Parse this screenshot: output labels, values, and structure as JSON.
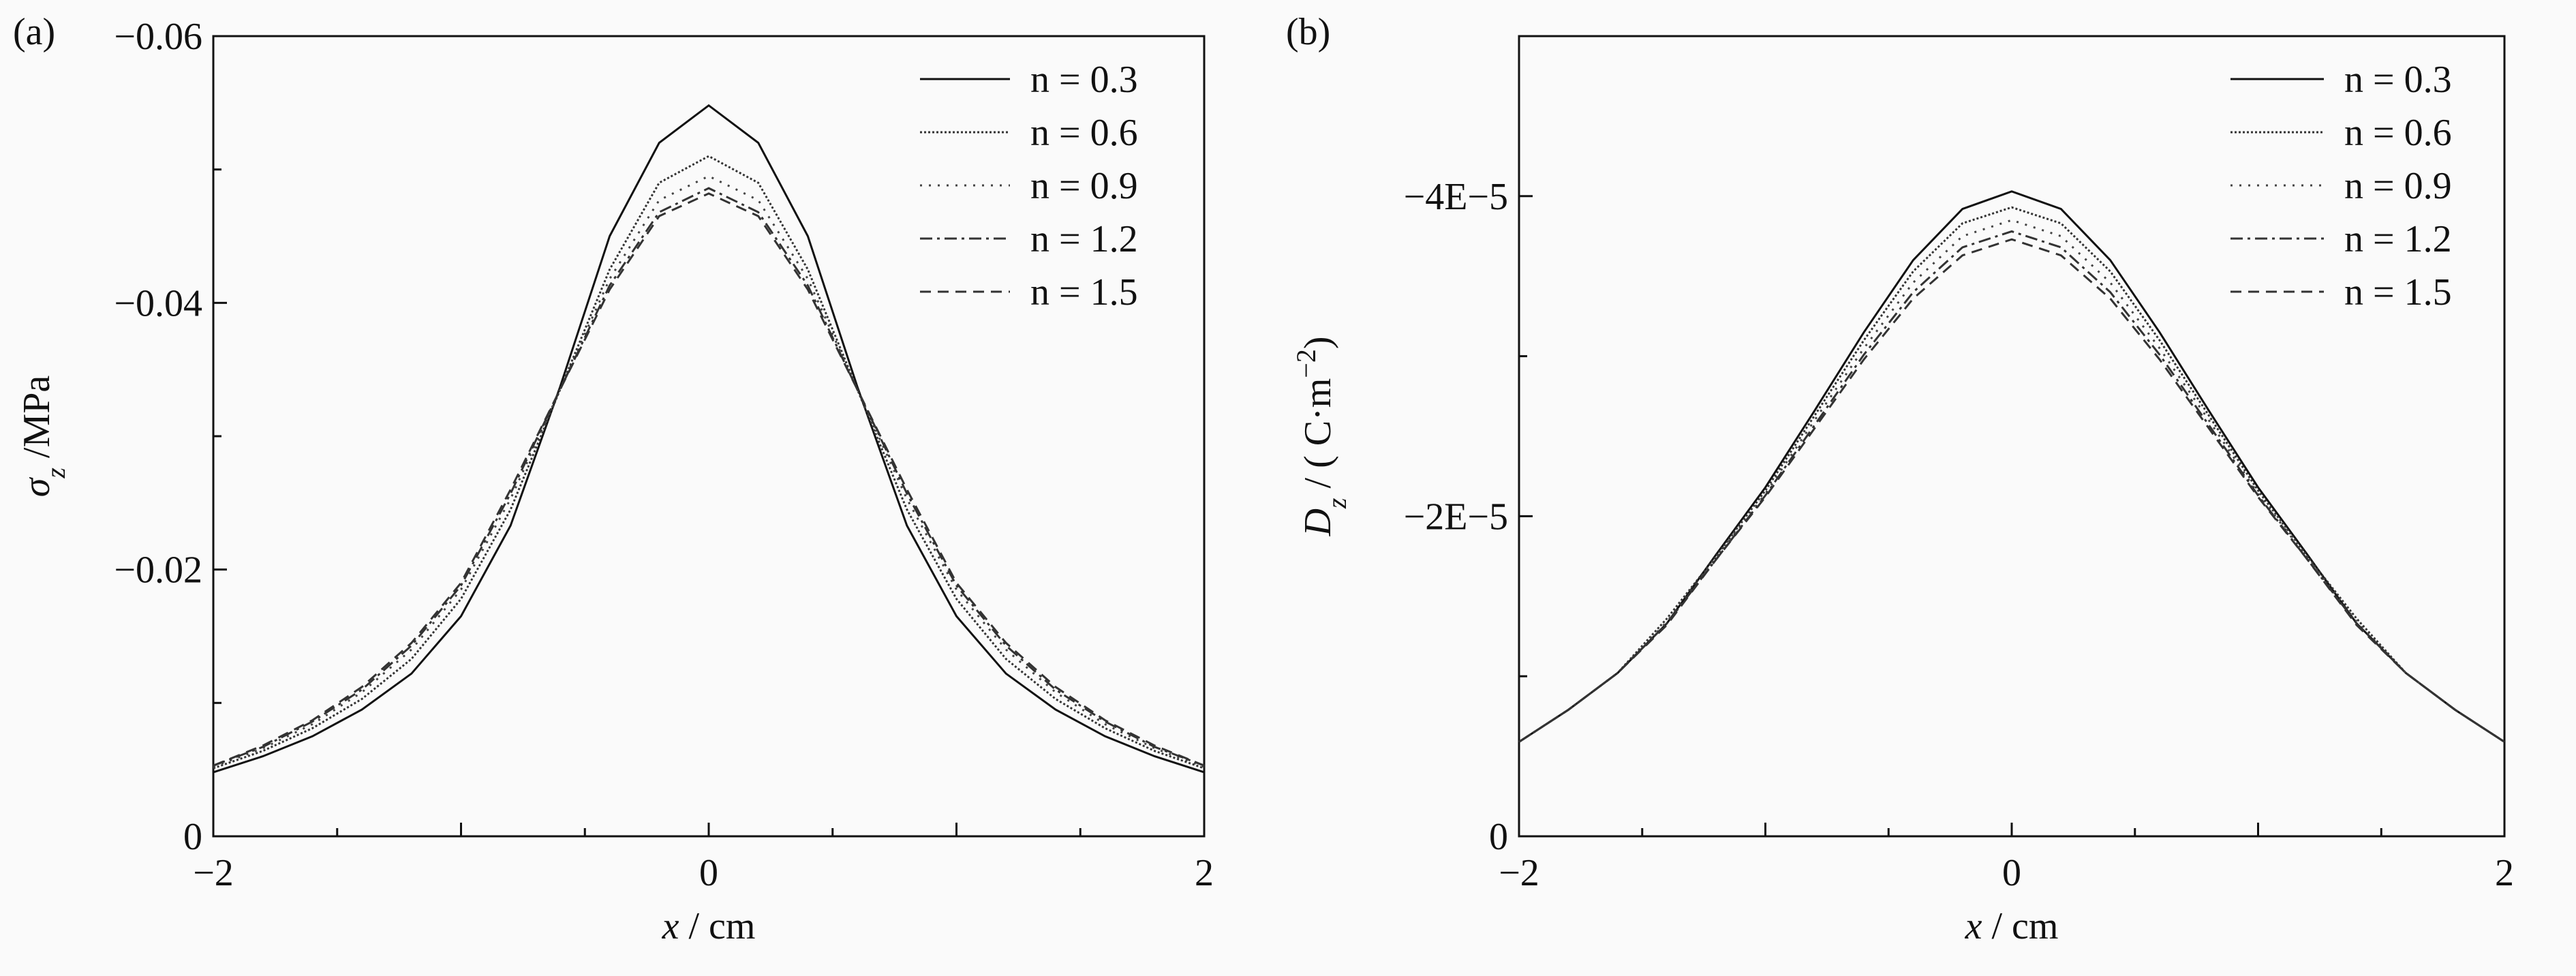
{
  "chart_data": [
    {
      "type": "line",
      "panel_label": "(a)",
      "x_label": [
        {
          "text": "x",
          "style": "italic"
        },
        {
          "text": " / cm",
          "style": "normal"
        }
      ],
      "y_label": [
        {
          "text": "σ",
          "style": "italic"
        },
        {
          "text": "z",
          "style": "sub"
        },
        {
          "text": " /MPa",
          "style": "normal"
        }
      ],
      "xlim": [
        -2,
        2
      ],
      "xticks": [
        {
          "value": -2,
          "label": "−2"
        },
        0,
        2
      ],
      "xminor": [
        -1.5,
        -1,
        -0.5,
        0.5,
        1,
        1.5
      ],
      "ylim": [
        0,
        -0.06
      ],
      "yticks": [
        0,
        {
          "value": -0.02,
          "label": "−0.02"
        },
        {
          "value": -0.04,
          "label": "−0.04"
        },
        {
          "value": -0.06,
          "label": "−0.06"
        }
      ],
      "yminor": [
        -0.01,
        -0.03,
        -0.05
      ],
      "legend": "upper right",
      "x": [
        -2,
        -1.8,
        -1.6,
        -1.4,
        -1.2,
        -1,
        -0.8,
        -0.6,
        -0.4,
        -0.2,
        0,
        0.2,
        0.4,
        0.6,
        0.8,
        1,
        1.2,
        1.4,
        1.6,
        1.8,
        2
      ],
      "series": [
        {
          "name": "n = 0.3",
          "color": "#111111",
          "dash": "solid",
          "values": [
            -0.0048,
            -0.006,
            -0.0075,
            -0.0095,
            -0.0122,
            -0.0165,
            -0.0233,
            -0.0337,
            -0.045,
            -0.052,
            -0.0548,
            -0.052,
            -0.045,
            -0.0337,
            -0.0233,
            -0.0165,
            -0.0122,
            -0.0095,
            -0.0075,
            -0.006,
            -0.0048
          ]
        },
        {
          "name": "n = 0.6",
          "color": "#333333",
          "dash": "dense-dot",
          "values": [
            -0.0051,
            -0.0064,
            -0.0081,
            -0.0103,
            -0.0133,
            -0.0178,
            -0.0245,
            -0.0335,
            -0.0425,
            -0.049,
            -0.051,
            -0.049,
            -0.0425,
            -0.0335,
            -0.0245,
            -0.0178,
            -0.0133,
            -0.0103,
            -0.0081,
            -0.0064,
            -0.0051
          ]
        },
        {
          "name": "n = 0.9",
          "color": "#444444",
          "dash": "sparse-dot",
          "values": [
            -0.0052,
            -0.0066,
            -0.0084,
            -0.0108,
            -0.014,
            -0.0185,
            -0.0253,
            -0.0335,
            -0.0418,
            -0.0477,
            -0.0495,
            -0.0477,
            -0.0418,
            -0.0335,
            -0.0253,
            -0.0185,
            -0.014,
            -0.0108,
            -0.0084,
            -0.0066,
            -0.0052
          ]
        },
        {
          "name": "n = 1.2",
          "color": "#333333",
          "dash": "dash-dot",
          "values": [
            -0.0053,
            -0.0067,
            -0.0086,
            -0.011,
            -0.0143,
            -0.0188,
            -0.0257,
            -0.0335,
            -0.0413,
            -0.0468,
            -0.0486,
            -0.0468,
            -0.0413,
            -0.0335,
            -0.0257,
            -0.0188,
            -0.0143,
            -0.011,
            -0.0086,
            -0.0067,
            -0.0053
          ]
        },
        {
          "name": "n = 1.5",
          "color": "#333333",
          "dash": "dashed",
          "values": [
            -0.0053,
            -0.0068,
            -0.0087,
            -0.0112,
            -0.0145,
            -0.019,
            -0.026,
            -0.0335,
            -0.041,
            -0.0465,
            -0.0482,
            -0.0465,
            -0.041,
            -0.0335,
            -0.026,
            -0.019,
            -0.0145,
            -0.0112,
            -0.0087,
            -0.0068,
            -0.0053
          ]
        }
      ]
    },
    {
      "type": "line",
      "panel_label": "(b)",
      "x_label": [
        {
          "text": "x",
          "style": "italic"
        },
        {
          "text": " / cm",
          "style": "normal"
        }
      ],
      "y_label": [
        {
          "text": "D",
          "style": "italic"
        },
        {
          "text": "z",
          "style": "sub"
        },
        {
          "text": " / ( C·m",
          "style": "normal"
        },
        {
          "text": "−2",
          "style": "sup"
        },
        {
          "text": ")",
          "style": "normal"
        }
      ],
      "xlim": [
        -2,
        2
      ],
      "xticks": [
        {
          "value": -2,
          "label": "−2"
        },
        0,
        2
      ],
      "xminor": [
        -1.5,
        -1,
        -0.5,
        0.5,
        1,
        1.5
      ],
      "ylim": [
        0,
        -5e-05
      ],
      "yticks": [
        0,
        {
          "value": -2e-05,
          "label": "−2E−5"
        },
        {
          "value": -4e-05,
          "label": "−4E−5"
        }
      ],
      "yminor": [
        -1e-05,
        -3e-05
      ],
      "legend": "upper right",
      "x": [
        -2,
        -1.8,
        -1.6,
        -1.4,
        -1.2,
        -1,
        -0.8,
        -0.6,
        -0.4,
        -0.2,
        0,
        0.2,
        0.4,
        0.6,
        0.8,
        1,
        1.2,
        1.4,
        1.6,
        1.8,
        2
      ],
      "series": [
        {
          "name": "n = 0.3",
          "color": "#111111",
          "dash": "solid",
          "values": [
            -5.9e-06,
            -7.9e-06,
            -1.02e-05,
            -1.33e-05,
            -1.76e-05,
            -2.18e-05,
            -2.66e-05,
            -3.15e-05,
            -3.6e-05,
            -3.92e-05,
            -4.03e-05,
            -3.92e-05,
            -3.6e-05,
            -3.15e-05,
            -2.66e-05,
            -2.18e-05,
            -1.76e-05,
            -1.33e-05,
            -1.02e-05,
            -7.9e-06,
            -5.9e-06
          ]
        },
        {
          "name": "n = 0.6",
          "color": "#333333",
          "dash": "dense-dot",
          "values": [
            -5.9e-06,
            -7.9e-06,
            -1.02e-05,
            -1.36e-05,
            -1.75e-05,
            -2.16e-05,
            -2.63e-05,
            -3.1e-05,
            -3.53e-05,
            -3.83e-05,
            -3.93e-05,
            -3.83e-05,
            -3.53e-05,
            -3.1e-05,
            -2.63e-05,
            -2.16e-05,
            -1.75e-05,
            -1.36e-05,
            -1.02e-05,
            -7.9e-06,
            -5.9e-06
          ]
        },
        {
          "name": "n = 0.9",
          "color": "#444444",
          "dash": "sparse-dot",
          "values": [
            -5.9e-06,
            -7.9e-06,
            -1.02e-05,
            -1.34e-05,
            -1.74e-05,
            -2.14e-05,
            -2.6e-05,
            -3.05e-05,
            -3.46e-05,
            -3.75e-05,
            -3.85e-05,
            -3.75e-05,
            -3.46e-05,
            -3.05e-05,
            -2.6e-05,
            -2.14e-05,
            -1.74e-05,
            -1.34e-05,
            -1.02e-05,
            -7.9e-06,
            -5.9e-06
          ]
        },
        {
          "name": "n = 1.2",
          "color": "#333333",
          "dash": "dash-dot",
          "values": [
            -5.9e-06,
            -7.9e-06,
            -1.02e-05,
            -1.33e-05,
            -1.73e-05,
            -2.13e-05,
            -2.57e-05,
            -3.01e-05,
            -3.4e-05,
            -3.68e-05,
            -3.78e-05,
            -3.68e-05,
            -3.4e-05,
            -3.01e-05,
            -2.57e-05,
            -2.13e-05,
            -1.73e-05,
            -1.33e-05,
            -1.02e-05,
            -7.9e-06,
            -5.9e-06
          ]
        },
        {
          "name": "n = 1.5",
          "color": "#333333",
          "dash": "dashed",
          "values": [
            -5.9e-06,
            -7.9e-06,
            -1.02e-05,
            -1.32e-05,
            -1.73e-05,
            -2.12e-05,
            -2.55e-05,
            -2.98e-05,
            -3.36e-05,
            -3.63e-05,
            -3.73e-05,
            -3.63e-05,
            -3.36e-05,
            -2.98e-05,
            -2.55e-05,
            -2.12e-05,
            -1.73e-05,
            -1.32e-05,
            -1.02e-05,
            -7.9e-06,
            -5.9e-06
          ]
        }
      ]
    }
  ]
}
